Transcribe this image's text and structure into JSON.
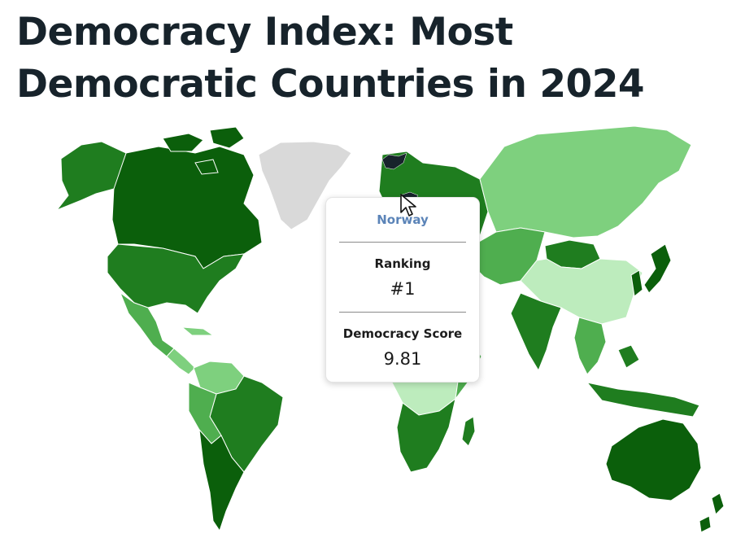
{
  "title": "Democracy Index: Most Democratic Countries in 2024",
  "colors": {
    "full_democracy": "#0b5f0b",
    "high": "#1f7d1f",
    "mid": "#4fae4f",
    "low": "#7ed07e",
    "lowest": "#bdecbd",
    "no_data": "#d9d9d9",
    "tooltip_country": "#5b84b8"
  },
  "tooltip": {
    "country": "Norway",
    "ranking_label": "Ranking",
    "ranking_value": "#1",
    "score_label": "Democracy Score",
    "score_value": "9.81"
  }
}
